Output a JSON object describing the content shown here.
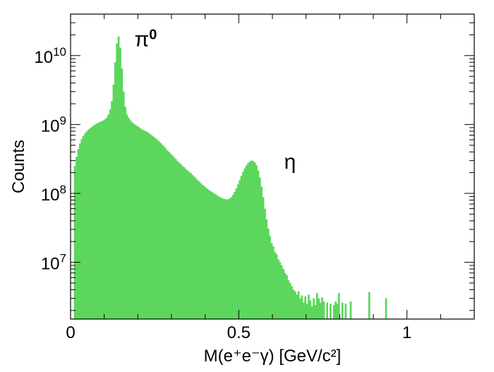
{
  "chart_data": {
    "type": "bar",
    "subtype": "histogram",
    "xlabel": "M(e⁺e⁻γ) [GeV/c²]",
    "ylabel": "Counts",
    "yscale": "log",
    "xlim": [
      0,
      1.2
    ],
    "ylim": [
      1500000,
      40000000000
    ],
    "grid": false,
    "legend": "none",
    "bin_width": 0.005,
    "color": "#5cd65c",
    "x_ticks": [
      {
        "value": 0,
        "label": "0"
      },
      {
        "value": 0.5,
        "label": "0.5"
      },
      {
        "value": 1,
        "label": "1"
      }
    ],
    "y_ticks": [
      {
        "value": 10000000,
        "base": "10",
        "exp": "7"
      },
      {
        "value": 100000000,
        "base": "10",
        "exp": "8"
      },
      {
        "value": 1000000000,
        "base": "10",
        "exp": "9"
      },
      {
        "value": 10000000000,
        "base": "10",
        "exp": "10"
      }
    ],
    "annotations": [
      {
        "text": "π",
        "sup": "0",
        "x": 0.19,
        "y": 19000000000
      },
      {
        "text": "η",
        "x": 0.635,
        "y": 290000000
      }
    ],
    "bins": [
      [
        0.0125,
        250000000
      ],
      [
        0.0175,
        340000000
      ],
      [
        0.0225,
        440000000
      ],
      [
        0.0275,
        530000000
      ],
      [
        0.0325,
        610000000
      ],
      [
        0.0375,
        680000000
      ],
      [
        0.0425,
        740000000
      ],
      [
        0.0475,
        790000000
      ],
      [
        0.0525,
        840000000
      ],
      [
        0.0575,
        880000000
      ],
      [
        0.0625,
        920000000
      ],
      [
        0.0675,
        960000000
      ],
      [
        0.0725,
        1000000000
      ],
      [
        0.0775,
        1030000000
      ],
      [
        0.0825,
        1060000000
      ],
      [
        0.0875,
        1090000000
      ],
      [
        0.0925,
        1120000000
      ],
      [
        0.0975,
        1150000000
      ],
      [
        0.1025,
        1200000000
      ],
      [
        0.1075,
        1270000000
      ],
      [
        0.1125,
        1400000000
      ],
      [
        0.1175,
        1650000000
      ],
      [
        0.1225,
        2200000000
      ],
      [
        0.1275,
        3800000000
      ],
      [
        0.1325,
        8000000000
      ],
      [
        0.1375,
        15000000000
      ],
      [
        0.1425,
        19000000000
      ],
      [
        0.1475,
        13000000000
      ],
      [
        0.1525,
        6500000000
      ],
      [
        0.1575,
        3000000000
      ],
      [
        0.1625,
        1800000000
      ],
      [
        0.1675,
        1400000000
      ],
      [
        0.1725,
        1250000000
      ],
      [
        0.1775,
        1150000000
      ],
      [
        0.1825,
        1080000000
      ],
      [
        0.1875,
        1030000000
      ],
      [
        0.1925,
        990000000
      ],
      [
        0.1975,
        950000000
      ],
      [
        0.2025,
        920000000
      ],
      [
        0.2075,
        880000000
      ],
      [
        0.2125,
        850000000
      ],
      [
        0.2175,
        820000000
      ],
      [
        0.2225,
        800000000
      ],
      [
        0.2275,
        780000000
      ],
      [
        0.2325,
        750000000
      ],
      [
        0.2375,
        720000000
      ],
      [
        0.2425,
        690000000
      ],
      [
        0.2475,
        660000000
      ],
      [
        0.2525,
        630000000
      ],
      [
        0.2575,
        600000000
      ],
      [
        0.2625,
        570000000
      ],
      [
        0.2675,
        540000000
      ],
      [
        0.2725,
        510000000
      ],
      [
        0.2775,
        480000000
      ],
      [
        0.2825,
        450000000
      ],
      [
        0.2875,
        420000000
      ],
      [
        0.2925,
        400000000
      ],
      [
        0.2975,
        375000000
      ],
      [
        0.3025,
        355000000
      ],
      [
        0.3075,
        335000000
      ],
      [
        0.3125,
        315000000
      ],
      [
        0.3175,
        295000000
      ],
      [
        0.3225,
        280000000
      ],
      [
        0.3275,
        265000000
      ],
      [
        0.3325,
        250000000
      ],
      [
        0.3375,
        240000000
      ],
      [
        0.3425,
        225000000
      ],
      [
        0.3475,
        215000000
      ],
      [
        0.3525,
        205000000
      ],
      [
        0.3575,
        195000000
      ],
      [
        0.3625,
        185000000
      ],
      [
        0.3675,
        175000000
      ],
      [
        0.3725,
        165000000
      ],
      [
        0.3775,
        155000000
      ],
      [
        0.3825,
        148000000
      ],
      [
        0.3875,
        140000000
      ],
      [
        0.3925,
        133000000
      ],
      [
        0.3975,
        127000000
      ],
      [
        0.4025,
        121000000
      ],
      [
        0.4075,
        116000000
      ],
      [
        0.4125,
        111000000
      ],
      [
        0.4175,
        107000000
      ],
      [
        0.4225,
        103000000
      ],
      [
        0.4275,
        99000000
      ],
      [
        0.4325,
        96000000
      ],
      [
        0.4375,
        92000000
      ],
      [
        0.4425,
        89000000
      ],
      [
        0.4475,
        86000000
      ],
      [
        0.4525,
        84000000
      ],
      [
        0.4575,
        83000000
      ],
      [
        0.4625,
        82000000
      ],
      [
        0.4675,
        82000000
      ],
      [
        0.4725,
        84000000
      ],
      [
        0.4775,
        88000000
      ],
      [
        0.4825,
        95000000
      ],
      [
        0.4875,
        105000000
      ],
      [
        0.4925,
        118000000
      ],
      [
        0.4975,
        135000000
      ],
      [
        0.5025,
        155000000
      ],
      [
        0.5075,
        180000000
      ],
      [
        0.5125,
        205000000
      ],
      [
        0.5175,
        230000000
      ],
      [
        0.5225,
        255000000
      ],
      [
        0.5275,
        275000000
      ],
      [
        0.5325,
        290000000
      ],
      [
        0.5375,
        300000000
      ],
      [
        0.5425,
        295000000
      ],
      [
        0.5475,
        280000000
      ],
      [
        0.5525,
        255000000
      ],
      [
        0.5575,
        215000000
      ],
      [
        0.5625,
        170000000
      ],
      [
        0.5675,
        125000000
      ],
      [
        0.5725,
        88000000
      ],
      [
        0.5775,
        60000000
      ],
      [
        0.5825,
        42000000
      ],
      [
        0.5875,
        31000000
      ],
      [
        0.5925,
        24000000
      ],
      [
        0.5975,
        19000000
      ],
      [
        0.6025,
        17000000
      ],
      [
        0.6075,
        14000000
      ],
      [
        0.6125,
        13000000
      ],
      [
        0.6175,
        11000000
      ],
      [
        0.6225,
        10000000
      ],
      [
        0.6275,
        9000000
      ],
      [
        0.6325,
        8000000
      ],
      [
        0.6375,
        7000000
      ],
      [
        0.6425,
        6500000
      ],
      [
        0.6475,
        5500000
      ],
      [
        0.6525,
        5000000
      ],
      [
        0.6575,
        4500000
      ],
      [
        0.6625,
        4000000
      ],
      [
        0.6675,
        3800000
      ],
      [
        0.6725,
        3400000
      ],
      [
        0.6775,
        3800000
      ],
      [
        0.6825,
        3000000
      ],
      [
        0.6875,
        3300000
      ],
      [
        0.6925,
        2600000
      ],
      [
        0.6975,
        3200000
      ],
      [
        0.7025,
        2500000
      ],
      [
        0.7075,
        3400000
      ],
      [
        0.7125,
        2800000
      ],
      [
        0.7175,
        2300000
      ],
      [
        0.7225,
        3000000
      ],
      [
        0.7275,
        2400000
      ],
      [
        0.7325,
        3600000
      ],
      [
        0.7375,
        3000000
      ],
      [
        0.7425,
        2600000
      ],
      [
        0.7475,
        3100000
      ],
      [
        0.7525,
        2700000
      ],
      [
        0.7625,
        2600000
      ],
      [
        0.7725,
        2500000
      ],
      [
        0.7825,
        2400000
      ],
      [
        0.7875,
        2700000
      ],
      [
        0.7925,
        2500000
      ],
      [
        0.7975,
        3600000
      ],
      [
        0.8075,
        2600000
      ],
      [
        0.8175,
        2500000
      ],
      [
        0.8325,
        2700000
      ],
      [
        0.8875,
        3700000
      ],
      [
        0.9375,
        3000000
      ]
    ]
  }
}
